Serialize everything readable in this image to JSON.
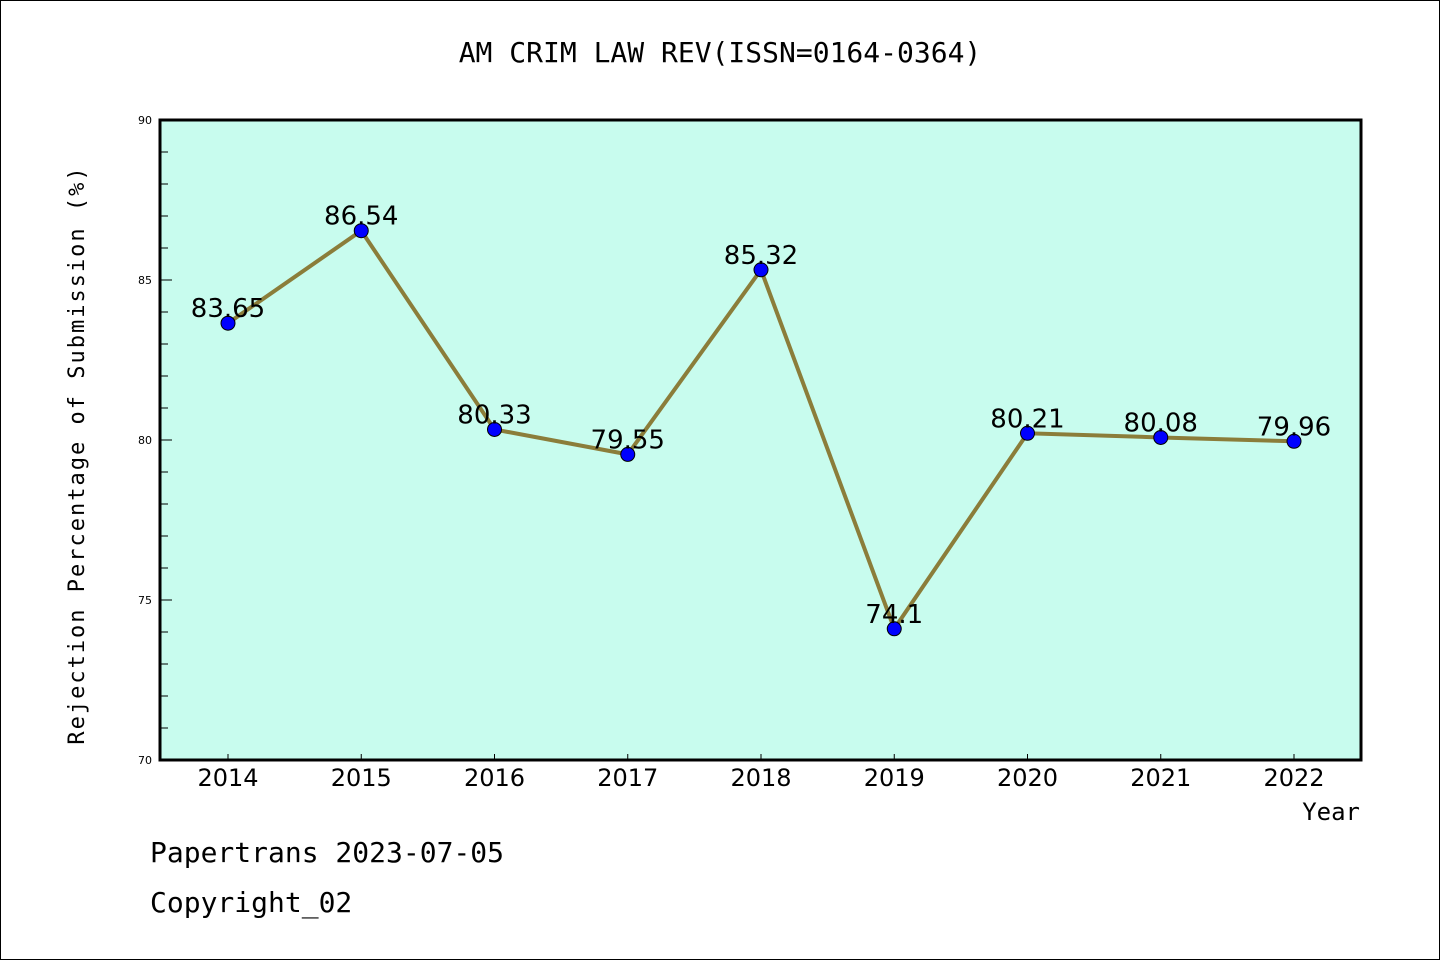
{
  "chart_data": {
    "type": "line",
    "title": "AM CRIM LAW REV(ISSN=0164-0364)",
    "xlabel": "Year",
    "ylabel": "Rejection Percentage of Submission (%)",
    "categories": [
      "2014",
      "2015",
      "2016",
      "2017",
      "2018",
      "2019",
      "2020",
      "2021",
      "2022"
    ],
    "values": [
      83.65,
      86.54,
      80.33,
      79.55,
      85.32,
      74.1,
      80.21,
      80.08,
      79.96
    ],
    "data_labels": [
      "83.65",
      "86.54",
      "80.33",
      "79.55",
      "85.32",
      "74.1",
      "80.21",
      "80.08",
      "79.96"
    ],
    "ylim": [
      70,
      90
    ],
    "yticks": [
      "70",
      "75",
      "80",
      "85",
      "90"
    ],
    "grid": false,
    "colors": {
      "background": "#c8fcee",
      "line": "#8b7d3a",
      "marker": "#0000ff"
    }
  },
  "footer": {
    "line1": "Papertrans 2023-07-05",
    "line2": "Copyright_02"
  }
}
